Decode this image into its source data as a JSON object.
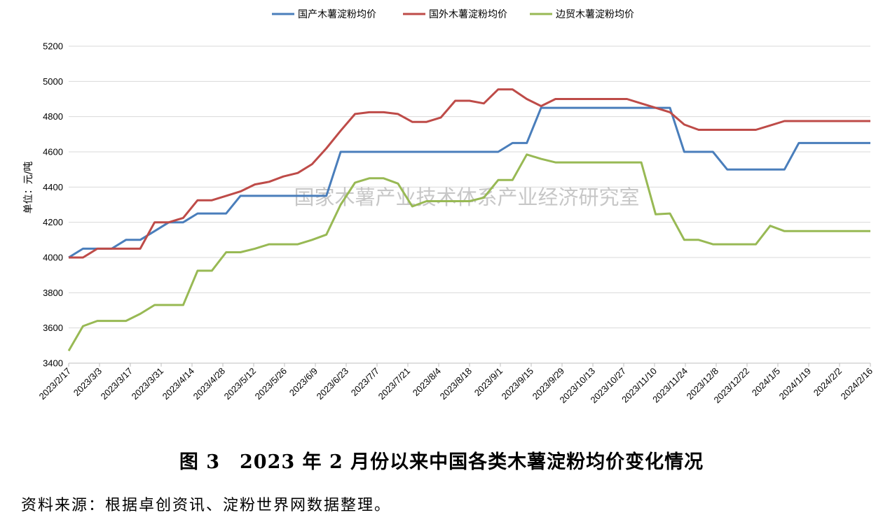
{
  "chart_data": {
    "type": "line",
    "title": "",
    "ylabel": "单位：元/吨",
    "ylim": [
      3400,
      5200
    ],
    "yticks": [
      "3400",
      "3600",
      "3800",
      "4000",
      "4200",
      "4400",
      "4600",
      "4800",
      "5000",
      "5200"
    ],
    "xtick_labels": [
      "2023/2/17",
      "2023/3/3",
      "2023/3/17",
      "2023/3/31",
      "2023/4/14",
      "2023/4/28",
      "2023/5/12",
      "2023/5/26",
      "2023/6/9",
      "2023/6/23",
      "2023/7/7",
      "2023/7/21",
      "2023/8/4",
      "2023/8/18",
      "2023/9/1",
      "2023/9/15",
      "2023/9/29",
      "2023/10/13",
      "2023/10/27",
      "2023/11/10",
      "2023/11/24",
      "2023/12/8",
      "2023/12/22",
      "2024/1/5",
      "2024/1/19",
      "2024/2/2",
      "2024/2/16"
    ],
    "legend_position": "top-center",
    "grid": "horizontal",
    "series": [
      {
        "name": "国产木薯淀粉均价",
        "color": "#4a7ebb",
        "values": [
          4000,
          4050,
          4050,
          4050,
          4100,
          4100,
          4150,
          4200,
          4200,
          4250,
          4250,
          4250,
          4350,
          4350,
          4350,
          4350,
          4350,
          4350,
          4350,
          4600,
          4600,
          4600,
          4600,
          4600,
          4600,
          4600,
          4600,
          4600,
          4600,
          4600,
          4600,
          4650,
          4650,
          4850,
          4850,
          4850,
          4850,
          4850,
          4850,
          4850,
          4850,
          4850,
          4850,
          4600,
          4600,
          4600,
          4500,
          4500,
          4500,
          4500,
          4500,
          4650,
          4650,
          4650,
          4650,
          4650,
          4650
        ]
      },
      {
        "name": "国外木薯淀粉均价",
        "color": "#be4b48",
        "values": [
          4000,
          4000,
          4050,
          4050,
          4050,
          4050,
          4200,
          4200,
          4225,
          4325,
          4325,
          4350,
          4375,
          4415,
          4430,
          4460,
          4480,
          4530,
          4620,
          4720,
          4815,
          4825,
          4825,
          4815,
          4770,
          4770,
          4795,
          4890,
          4890,
          4875,
          4955,
          4955,
          4900,
          4860,
          4900,
          4900,
          4900,
          4900,
          4900,
          4900,
          4875,
          4850,
          4825,
          4755,
          4725,
          4725,
          4725,
          4725,
          4725,
          4750,
          4775,
          4775,
          4775,
          4775,
          4775,
          4775,
          4775
        ]
      },
      {
        "name": "边贸木薯淀粉均价",
        "color": "#98b954",
        "values": [
          3470,
          3610,
          3640,
          3640,
          3640,
          3680,
          3730,
          3730,
          3730,
          3925,
          3925,
          4030,
          4030,
          4050,
          4075,
          4075,
          4075,
          4100,
          4130,
          4300,
          4425,
          4450,
          4450,
          4420,
          4290,
          4320,
          4320,
          4320,
          4320,
          4340,
          4440,
          4440,
          4585,
          4560,
          4540,
          4540,
          4540,
          4540,
          4540,
          4540,
          4540,
          4245,
          4250,
          4100,
          4100,
          4075,
          4075,
          4075,
          4075,
          4180,
          4150,
          4150,
          4150,
          4150,
          4150,
          4150,
          4150
        ]
      }
    ]
  },
  "watermark": "国家木薯产业技术体系产业经济研究室",
  "caption": "图 3　2023 年 2 月份以来中国各类木薯淀粉均价变化情况",
  "source": "资料来源：根据卓创资讯、淀粉世界网数据整理。"
}
